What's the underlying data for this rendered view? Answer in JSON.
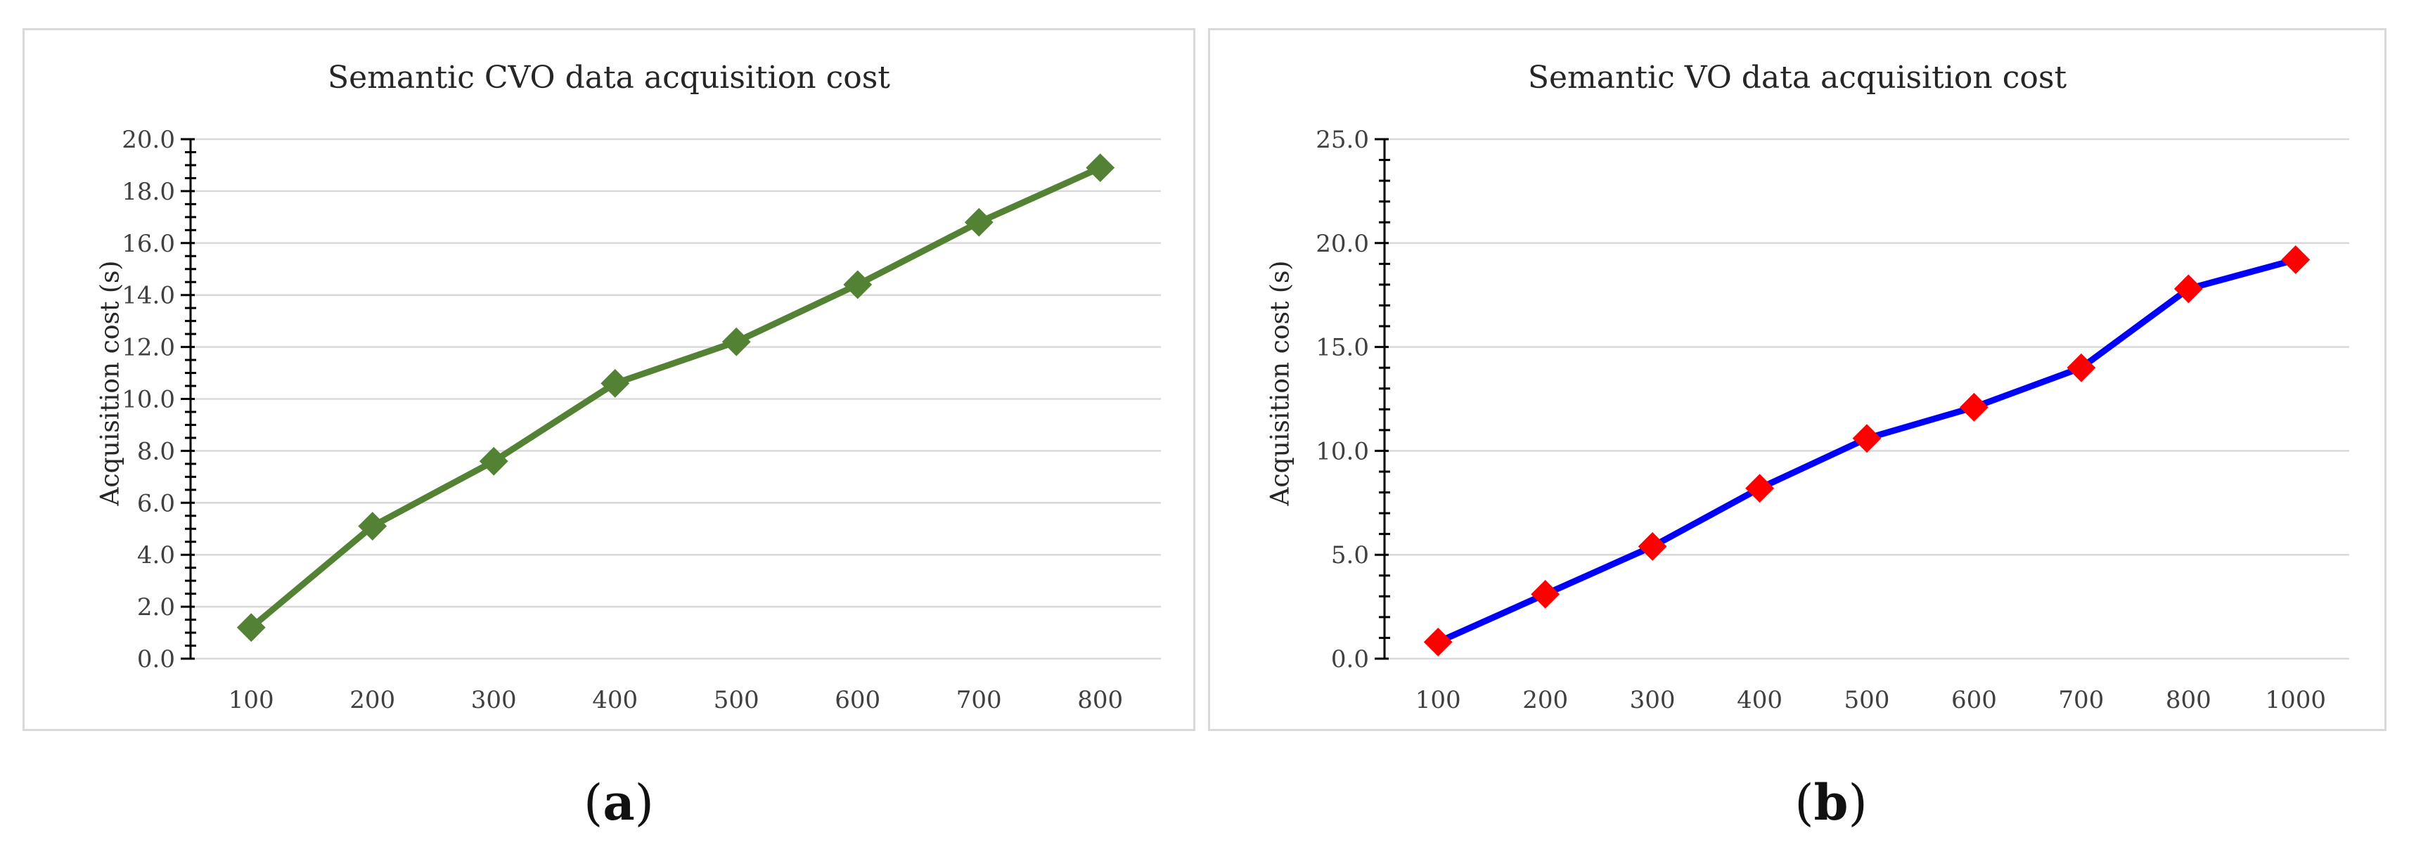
{
  "chart_data": [
    {
      "id": "a",
      "type": "line",
      "title": "Semantic CVO data acquisition cost",
      "xlabel": "",
      "ylabel": "Acquisition cost (s)",
      "categories": [
        "100",
        "200",
        "300",
        "400",
        "500",
        "600",
        "700",
        "800"
      ],
      "series": [
        {
          "name": "Semantic CVO",
          "values": [
            1.2,
            5.1,
            7.6,
            10.6,
            12.2,
            14.4,
            16.8,
            18.9
          ],
          "line_color": "#548235",
          "marker_color": "#548235",
          "marker": "diamond"
        }
      ],
      "ylim": [
        0,
        20
      ],
      "yticks": [
        "0.0",
        "2.0",
        "4.0",
        "6.0",
        "8.0",
        "10.0",
        "12.0",
        "14.0",
        "16.0",
        "18.0",
        "20.0"
      ],
      "grid": true,
      "caption_letter": "a"
    },
    {
      "id": "b",
      "type": "line",
      "title": "Semantic VO data acquisition cost",
      "xlabel": "",
      "ylabel": "Acquisition cost (s)",
      "categories": [
        "100",
        "200",
        "300",
        "400",
        "500",
        "600",
        "700",
        "800",
        "1000"
      ],
      "series": [
        {
          "name": "Semantic VO",
          "values": [
            0.8,
            3.1,
            5.4,
            8.2,
            10.6,
            12.1,
            14.0,
            17.8,
            19.2
          ],
          "line_color": "#0000ff",
          "marker_color": "#ff0000",
          "marker": "diamond"
        }
      ],
      "ylim": [
        0,
        25
      ],
      "yticks": [
        "0.0",
        "5.0",
        "10.0",
        "15.0",
        "20.0",
        "25.0"
      ],
      "grid": true,
      "caption_letter": "b"
    }
  ]
}
